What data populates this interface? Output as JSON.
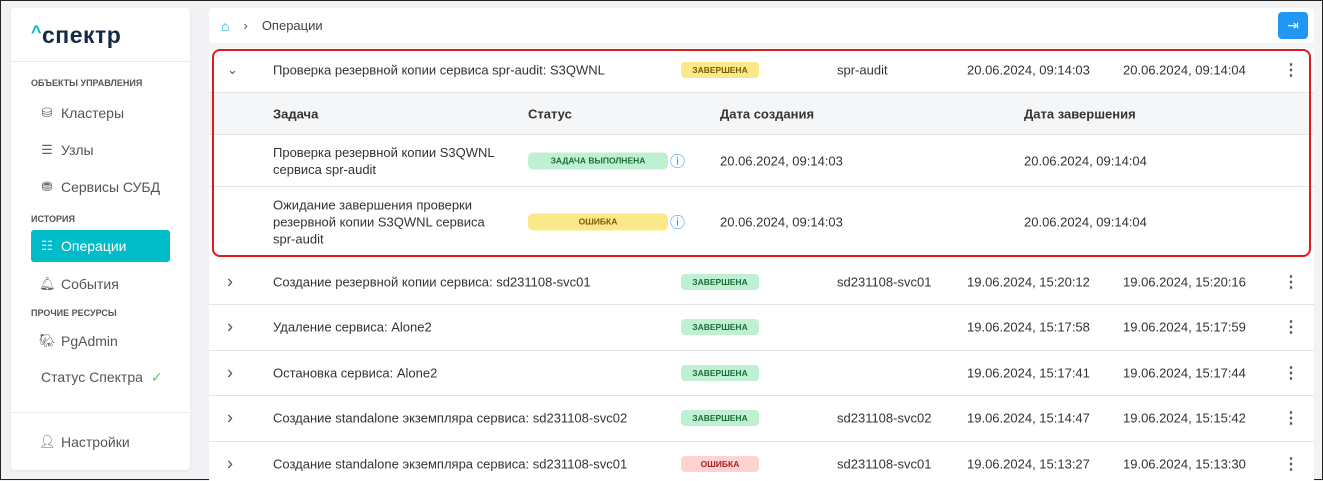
{
  "sidebar": {
    "logo": "спектр",
    "sections": [
      {
        "title": "ОБЪЕКТЫ УПРАВЛЕНИЯ"
      },
      {
        "title": "ИСТОРИЯ"
      },
      {
        "title": "ПРОЧИЕ РЕСУРСЫ"
      }
    ],
    "items": [
      {
        "label": "Кластеры",
        "icon": "clusters-icon"
      },
      {
        "label": "Узлы",
        "icon": "nodes-icon"
      },
      {
        "label": "Сервисы СУБД",
        "icon": "db-services-icon"
      },
      {
        "label": "Операции",
        "icon": "operations-icon",
        "active": true
      },
      {
        "label": "События",
        "icon": "bell-icon"
      },
      {
        "label": "PgAdmin",
        "icon": "pgadmin-icon"
      }
    ],
    "status": "Статус Спектра",
    "settings": "Настройки"
  },
  "header": {
    "breadcrumb": "Операции"
  },
  "colors": {
    "accent": "#00bcc8",
    "primary": "#2196f3",
    "highlight": "#e01b1b"
  },
  "expanded": {
    "title": "Проверка резервной копии сервиса spr-audit: S3QWNL",
    "status": "ЗАВЕРШЕНА",
    "service": "spr-audit",
    "created": "20.06.2024, 09:14:03",
    "finished": "20.06.2024, 09:14:04",
    "columns": [
      "Задача",
      "Статус",
      "Дата создания",
      "Дата завершения"
    ],
    "tasks": [
      {
        "name": "Проверка резервной копии S3QWNL сервиса spr-audit",
        "status": "ЗАДАЧА ВЫПОЛНЕНА",
        "created": "20.06.2024, 09:14:03",
        "finished": "20.06.2024, 09:14:04"
      },
      {
        "name": "Ожидание завершения проверки резервной копии S3QWNL сервиса spr-audit",
        "status": "ОШИБКА",
        "created": "20.06.2024, 09:14:03",
        "finished": "20.06.2024, 09:14:04"
      }
    ]
  },
  "operations": [
    {
      "title": "Создание резервной копии сервиса: sd231108-svc01",
      "status": "ЗАВЕРШЕНА",
      "service": "sd231108-svc01",
      "created": "19.06.2024, 15:20:12",
      "finished": "19.06.2024, 15:20:16"
    },
    {
      "title": "Удаление сервиса: Alone2",
      "status": "ЗАВЕРШЕНА",
      "service": "",
      "created": "19.06.2024, 15:17:58",
      "finished": "19.06.2024, 15:17:59"
    },
    {
      "title": "Остановка сервиса: Alone2",
      "status": "ЗАВЕРШЕНА",
      "service": "",
      "created": "19.06.2024, 15:17:41",
      "finished": "19.06.2024, 15:17:44"
    },
    {
      "title": "Создание standalone экземпляра сервиса: sd231108-svc02",
      "status": "ЗАВЕРШЕНА",
      "service": "sd231108-svc02",
      "created": "19.06.2024, 15:14:47",
      "finished": "19.06.2024, 15:15:42"
    },
    {
      "title": "Создание standalone экземпляра сервиса: sd231108-svc01",
      "status": "ОШИБКА",
      "service": "sd231108-svc01",
      "created": "19.06.2024, 15:13:27",
      "finished": "19.06.2024, 15:13:30"
    }
  ]
}
